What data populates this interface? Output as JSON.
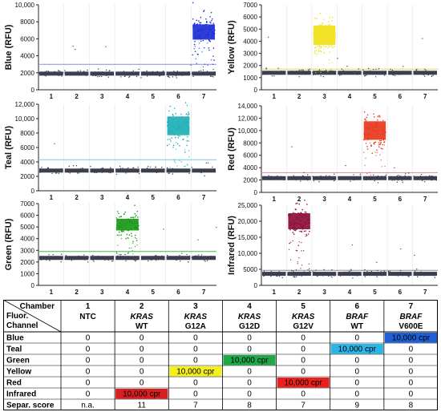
{
  "chart_data": [
    {
      "type": "scatter",
      "ylabel": "Blue (RFU)",
      "ylim": [
        0,
        10000
      ],
      "yticks": [
        "0",
        "2000",
        "4000",
        "6000",
        "8000",
        "10,000"
      ],
      "categories": [
        "1",
        "2",
        "3",
        "4",
        "5",
        "6",
        "7"
      ],
      "baseline": 1900,
      "threshold": 3000,
      "positive": {
        "chamber": "7",
        "center": 6800,
        "spread": 900,
        "color": "#1f2fd6"
      },
      "threshold_color": "#7f8fe0"
    },
    {
      "type": "scatter",
      "ylabel": "Yellow (RFU)",
      "ylim": [
        0,
        7000
      ],
      "yticks": [
        "0",
        "1000",
        "2000",
        "3000",
        "4000",
        "5000",
        "6000",
        "7000"
      ],
      "categories": [
        "1",
        "2",
        "3",
        "4",
        "5",
        "6",
        "7"
      ],
      "baseline": 1400,
      "threshold": 1700,
      "positive": {
        "chamber": "3",
        "center": 4500,
        "spread": 800,
        "color": "#f2e11a"
      },
      "threshold_color": "#e8d44a"
    },
    {
      "type": "scatter",
      "ylabel": "Teal (RFU)",
      "ylim": [
        0,
        12000
      ],
      "yticks": [
        "0",
        "2000",
        "4000",
        "6000",
        "8000",
        "10,000",
        "12,000"
      ],
      "categories": [
        "1",
        "2",
        "3",
        "4",
        "5",
        "6",
        "7"
      ],
      "baseline": 2800,
      "threshold": 4300,
      "positive": {
        "chamber": "6",
        "center": 9000,
        "spread": 1300,
        "color": "#1fb0b8"
      },
      "threshold_color": "#6fd0d8"
    },
    {
      "type": "scatter",
      "ylabel": "Red (RFU)",
      "ylim": [
        0,
        14000
      ],
      "yticks": [
        "0",
        "2000",
        "4000",
        "6000",
        "8000",
        "10,000",
        "12,000",
        "14,000"
      ],
      "categories": [
        "1",
        "2",
        "3",
        "4",
        "5",
        "6",
        "7"
      ],
      "baseline": 2300,
      "threshold": 3200,
      "positive": {
        "chamber": "5",
        "center": 10000,
        "spread": 1500,
        "color": "#e83a1e"
      },
      "threshold_color": "#e08aa0"
    },
    {
      "type": "scatter",
      "ylabel": "Green (RFU)",
      "ylim": [
        0,
        7000
      ],
      "yticks": [
        "0",
        "1000",
        "2000",
        "3000",
        "4000",
        "5000",
        "6000",
        "7000"
      ],
      "categories": [
        "1",
        "2",
        "3",
        "4",
        "5",
        "6",
        "7"
      ],
      "baseline": 2350,
      "threshold": 2900,
      "positive": {
        "chamber": "4",
        "center": 5200,
        "spread": 500,
        "color": "#1a9a1a"
      },
      "threshold_color": "#3fbf3f"
    },
    {
      "type": "scatter",
      "ylabel": "Infrared (RFU)",
      "ylim": [
        0,
        25000
      ],
      "yticks": [
        "0",
        "5000",
        "10,000",
        "15,000",
        "20,000",
        "25,000"
      ],
      "categories": [
        "1",
        "2",
        "3",
        "4",
        "5",
        "6",
        "7"
      ],
      "baseline": 3600,
      "threshold": 4700,
      "positive": {
        "chamber": "2",
        "center": 20000,
        "spread": 2500,
        "color": "#8c0f3a"
      },
      "threshold_color": "#8a8a8a"
    }
  ],
  "table": {
    "corner_top": "Chamber",
    "corner_mid": "Fluor.",
    "corner_bot": "Channel",
    "chambers": [
      {
        "num": "1",
        "gene": "NTC",
        "variant": ""
      },
      {
        "num": "2",
        "gene": "KRAS",
        "variant": "WT"
      },
      {
        "num": "3",
        "gene": "KRAS",
        "variant": "G12A"
      },
      {
        "num": "4",
        "gene": "KRAS",
        "variant": "G12D"
      },
      {
        "num": "5",
        "gene": "KRAS",
        "variant": "G12V"
      },
      {
        "num": "6",
        "gene": "BRAF",
        "variant": "WT"
      },
      {
        "num": "7",
        "gene": "BRAF",
        "variant": "V600E"
      }
    ],
    "rows": [
      {
        "label": "Blue",
        "cells": [
          "0",
          "0",
          "0",
          "0",
          "0",
          "0",
          "10,000 cpr"
        ],
        "hl": 6,
        "hl_color": "#1f5fd6"
      },
      {
        "label": "Teal",
        "cells": [
          "0",
          "0",
          "0",
          "0",
          "0",
          "10,000 cpr",
          "0"
        ],
        "hl": 5,
        "hl_color": "#2bb6ea"
      },
      {
        "label": "Green",
        "cells": [
          "0",
          "0",
          "0",
          "10,000 cpr",
          "0",
          "0",
          "0"
        ],
        "hl": 3,
        "hl_color": "#1fa84a"
      },
      {
        "label": "Yellow",
        "cells": [
          "0",
          "0",
          "10,000 cpr",
          "0",
          "0",
          "0",
          "0"
        ],
        "hl": 2,
        "hl_color": "#f5ef1a"
      },
      {
        "label": "Red",
        "cells": [
          "0",
          "0",
          "0",
          "0",
          "10,000 cpr",
          "0",
          "0"
        ],
        "hl": 4,
        "hl_color": "#e8201e"
      },
      {
        "label": "Infrared",
        "cells": [
          "0",
          "10,000 cpr",
          "0",
          "0",
          "0",
          "0",
          "0"
        ],
        "hl": 1,
        "hl_color": "#d81e1e"
      },
      {
        "label": "Separ. score",
        "cells": [
          "n.a.",
          "11",
          "7",
          "8",
          "7",
          "9",
          "8"
        ],
        "hl": -1,
        "hl_color": ""
      }
    ]
  }
}
